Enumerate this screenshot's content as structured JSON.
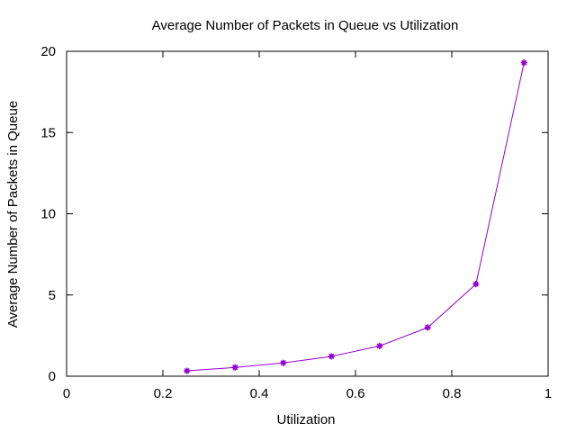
{
  "chart_data": {
    "type": "line",
    "title": "Average Number of Packets in Queue vs Utilization",
    "xlabel": "Utilization",
    "ylabel": "Average Number of Packets in Queue",
    "xlim": [
      0,
      1
    ],
    "ylim": [
      0,
      20
    ],
    "x_ticks": [
      0,
      0.2,
      0.4,
      0.6,
      0.8,
      1
    ],
    "x_tick_labels": [
      "0",
      "0.2",
      "0.4",
      "0.6",
      "0.8",
      "1"
    ],
    "y_ticks": [
      0,
      5,
      10,
      15,
      20
    ],
    "y_tick_labels": [
      "0",
      "5",
      "10",
      "15",
      "20"
    ],
    "grid": false,
    "series": [
      {
        "color": "#9400d3",
        "marker": "star",
        "x": [
          0.25,
          0.35,
          0.45,
          0.55,
          0.65,
          0.75,
          0.85,
          0.95
        ],
        "y": [
          0.33,
          0.54,
          0.82,
          1.22,
          1.86,
          3.0,
          5.67,
          19.3
        ]
      }
    ]
  }
}
